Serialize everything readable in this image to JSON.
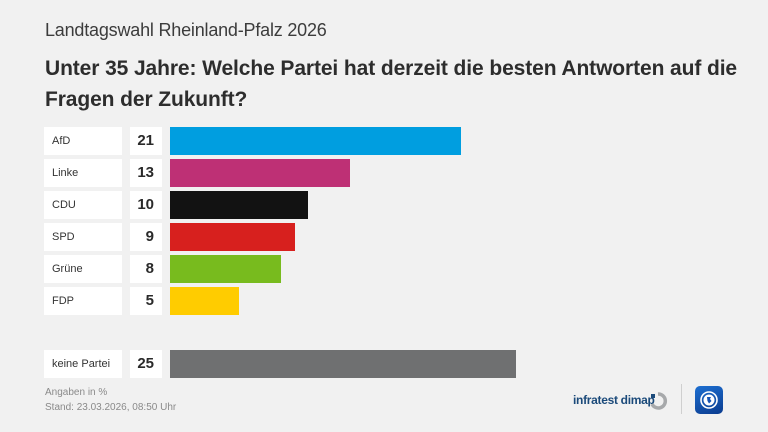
{
  "header": {
    "subtitle": "Landtagswahl Rheinland-Pfalz 2026",
    "title": "Unter 35 Jahre: Welche Partei hat derzeit die besten Antworten auf die Fragen der Zukunft?"
  },
  "chart_data": {
    "type": "bar",
    "orientation": "horizontal",
    "title": "Unter 35 Jahre: Welche Partei hat derzeit die besten Antworten auf die Fragen der Zukunft?",
    "subtitle": "Landtagswahl Rheinland-Pfalz 2026",
    "xlabel": "",
    "ylabel": "",
    "unit": "%",
    "categories": [
      "AfD",
      "Linke",
      "CDU",
      "SPD",
      "Grüne",
      "FDP",
      "keine Partei"
    ],
    "values": [
      21,
      13,
      10,
      9,
      8,
      5,
      25
    ],
    "colors": [
      "#009ee0",
      "#be3075",
      "#121212",
      "#d7201e",
      "#78bb1e",
      "#ffcc00",
      "#6f7071"
    ],
    "value_labels": [
      "21",
      "13",
      "10",
      "9",
      "8",
      "5",
      "25"
    ],
    "xlim": [
      0,
      25
    ],
    "grid": false,
    "legend": "none"
  },
  "footer": {
    "note": "Angaben in %",
    "timestamp": "Stand:  23.03.2026, 08:50 Uhr",
    "brand": "infratest dimap",
    "brand_logo_icon": "infratest-dimap-logo-icon",
    "broadcaster_logo_icon": "tagesschau-logo-icon"
  }
}
